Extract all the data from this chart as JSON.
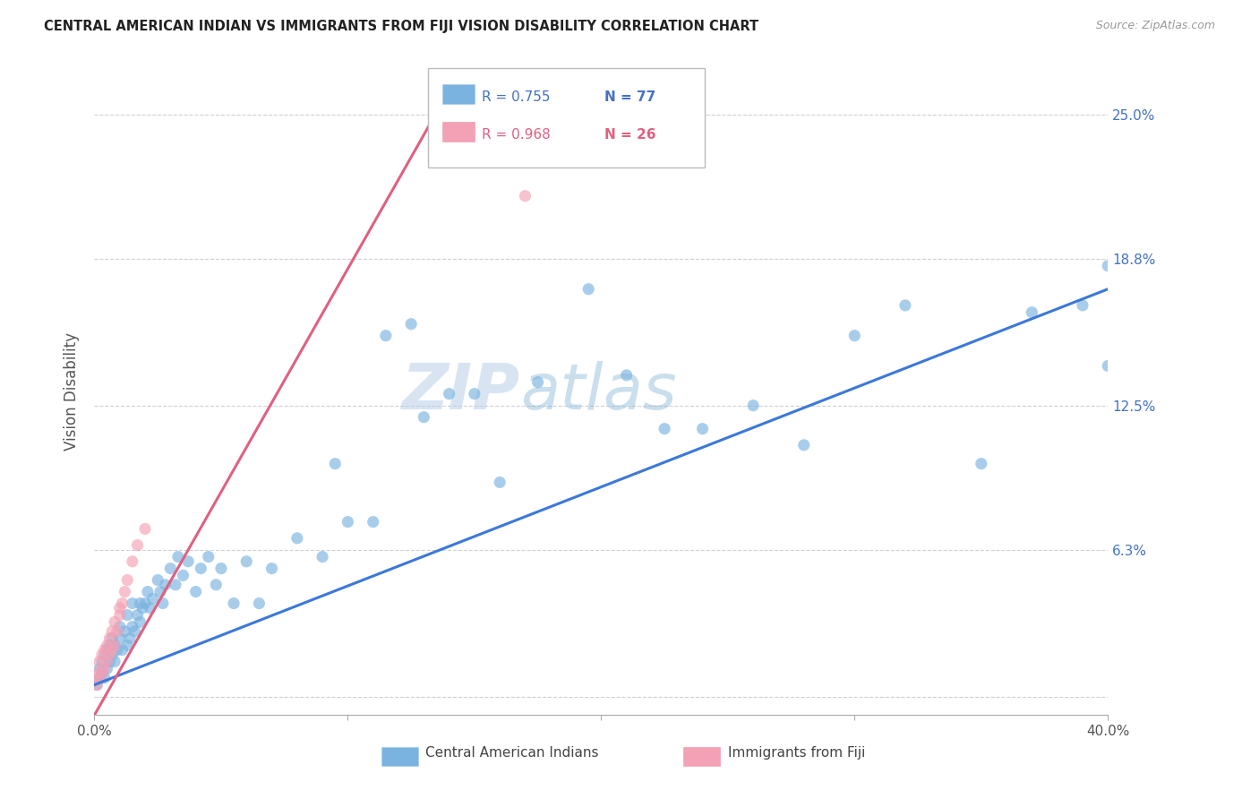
{
  "title": "CENTRAL AMERICAN INDIAN VS IMMIGRANTS FROM FIJI VISION DISABILITY CORRELATION CHART",
  "source": "Source: ZipAtlas.com",
  "ylabel": "Vision Disability",
  "ytick_labels": [
    "",
    "6.3%",
    "12.5%",
    "18.8%",
    "25.0%"
  ],
  "ytick_values": [
    0.0,
    0.063,
    0.125,
    0.188,
    0.25
  ],
  "xmin": 0.0,
  "xmax": 0.4,
  "ymin": -0.008,
  "ymax": 0.27,
  "legend_r1": "R = 0.755",
  "legend_n1": "N = 77",
  "legend_r2": "R = 0.968",
  "legend_n2": "N = 26",
  "blue_color": "#7ab3e0",
  "pink_color": "#f4a0b5",
  "blue_line_color": "#3c78d8",
  "pink_line_color": "#e06080",
  "blue_line_x0": 0.0,
  "blue_line_y0": 0.005,
  "blue_line_x1": 0.4,
  "blue_line_y1": 0.175,
  "pink_line_x0": 0.0,
  "pink_line_y0": -0.008,
  "pink_line_x1": 0.145,
  "pink_line_y1": 0.27,
  "blue_dots_x": [
    0.001,
    0.002,
    0.002,
    0.003,
    0.003,
    0.004,
    0.004,
    0.005,
    0.005,
    0.006,
    0.006,
    0.007,
    0.007,
    0.008,
    0.008,
    0.009,
    0.01,
    0.01,
    0.011,
    0.012,
    0.013,
    0.013,
    0.014,
    0.015,
    0.015,
    0.016,
    0.017,
    0.018,
    0.018,
    0.019,
    0.02,
    0.021,
    0.022,
    0.023,
    0.025,
    0.026,
    0.027,
    0.028,
    0.03,
    0.032,
    0.033,
    0.035,
    0.037,
    0.04,
    0.042,
    0.045,
    0.048,
    0.05,
    0.055,
    0.06,
    0.065,
    0.07,
    0.08,
    0.09,
    0.095,
    0.1,
    0.11,
    0.115,
    0.125,
    0.13,
    0.14,
    0.15,
    0.16,
    0.175,
    0.195,
    0.21,
    0.225,
    0.24,
    0.26,
    0.28,
    0.3,
    0.32,
    0.35,
    0.37,
    0.39,
    0.4,
    0.4
  ],
  "blue_dots_y": [
    0.005,
    0.008,
    0.012,
    0.01,
    0.015,
    0.008,
    0.018,
    0.012,
    0.02,
    0.015,
    0.022,
    0.018,
    0.025,
    0.015,
    0.022,
    0.02,
    0.025,
    0.03,
    0.02,
    0.028,
    0.022,
    0.035,
    0.025,
    0.03,
    0.04,
    0.028,
    0.035,
    0.04,
    0.032,
    0.038,
    0.04,
    0.045,
    0.038,
    0.042,
    0.05,
    0.045,
    0.04,
    0.048,
    0.055,
    0.048,
    0.06,
    0.052,
    0.058,
    0.045,
    0.055,
    0.06,
    0.048,
    0.055,
    0.04,
    0.058,
    0.04,
    0.055,
    0.068,
    0.06,
    0.1,
    0.075,
    0.075,
    0.155,
    0.16,
    0.12,
    0.13,
    0.13,
    0.092,
    0.135,
    0.175,
    0.138,
    0.115,
    0.115,
    0.125,
    0.108,
    0.155,
    0.168,
    0.1,
    0.165,
    0.168,
    0.142,
    0.185
  ],
  "pink_dots_x": [
    0.001,
    0.001,
    0.002,
    0.002,
    0.003,
    0.003,
    0.004,
    0.004,
    0.005,
    0.005,
    0.006,
    0.006,
    0.007,
    0.007,
    0.008,
    0.008,
    0.009,
    0.01,
    0.01,
    0.011,
    0.012,
    0.013,
    0.015,
    0.017,
    0.02,
    0.17
  ],
  "pink_dots_y": [
    0.005,
    0.01,
    0.008,
    0.015,
    0.01,
    0.018,
    0.012,
    0.02,
    0.015,
    0.022,
    0.018,
    0.025,
    0.02,
    0.028,
    0.022,
    0.032,
    0.028,
    0.035,
    0.038,
    0.04,
    0.045,
    0.05,
    0.058,
    0.065,
    0.072,
    0.215
  ],
  "watermark_zip": "ZIP",
  "watermark_atlas": "atlas",
  "background_color": "#ffffff",
  "grid_color": "#d0d0d0"
}
